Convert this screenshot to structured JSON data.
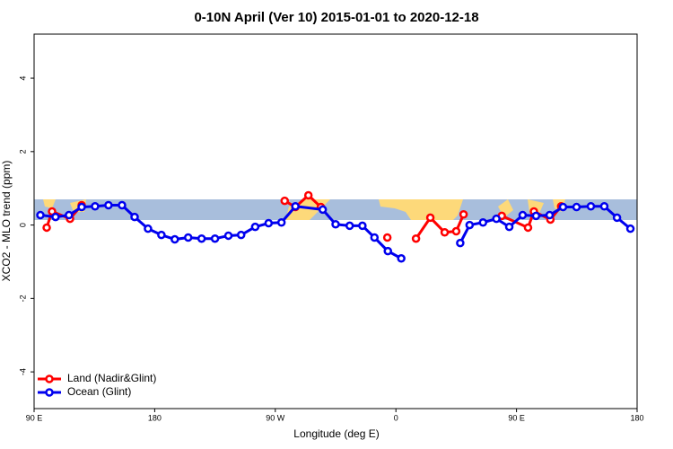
{
  "chart_data": {
    "type": "line",
    "title": "0-10N April (Ver 10)   2015-01-01 to 2020-12-18",
    "xlabel": "Longitude (deg E)",
    "ylabel": "XCO2 - MLO trend (ppm)",
    "xlim": [
      90,
      540
    ],
    "xticks": [
      {
        "value": 90,
        "label": "90 E"
      },
      {
        "value": 180,
        "label": "180"
      },
      {
        "value": 270,
        "label": "90 W"
      },
      {
        "value": 360,
        "label": "0"
      },
      {
        "value": 450,
        "label": "90 E"
      },
      {
        "value": 540,
        "label": "180"
      }
    ],
    "ylim": [
      -5.0,
      5.2
    ],
    "yticks": [
      -4,
      -2,
      0,
      2,
      4
    ],
    "legend": "bottom-left",
    "series": [
      {
        "name": "Land (Nadir&Glint)",
        "color": "#ff0000",
        "x": [
          99.4,
          103.4,
          116.8,
          125.5,
          null,
          277,
          285,
          294.7,
          304,
          null,
          353.6,
          null,
          375,
          385.7,
          396.4,
          405,
          410.5,
          null,
          439,
          458.6,
          463,
          475.3,
          483.3
        ],
        "values": [
          -0.07,
          0.37,
          0.17,
          0.54,
          null,
          0.66,
          0.49,
          0.81,
          0.49,
          null,
          -0.34,
          null,
          -0.37,
          0.2,
          -0.2,
          -0.17,
          0.29,
          null,
          0.25,
          -0.07,
          0.37,
          0.15,
          0.51
        ]
      },
      {
        "name": "Ocean (Glint)",
        "color": "#0000ee",
        "x": [
          94.7,
          106,
          116,
          125.5,
          135.5,
          145.5,
          155.6,
          165,
          175,
          185,
          195,
          205,
          215,
          225,
          235,
          244.5,
          255,
          265,
          274.6,
          285,
          305.4,
          315,
          325.5,
          335,
          344,
          354,
          364,
          null,
          408,
          415,
          425,
          435,
          444.6,
          454.6,
          464.6,
          474.7,
          484.7,
          494.8,
          505.5,
          515.5,
          525,
          535
        ],
        "values": [
          0.27,
          0.22,
          0.27,
          0.49,
          0.51,
          0.54,
          0.54,
          0.22,
          -0.1,
          -0.27,
          -0.39,
          -0.34,
          -0.37,
          -0.37,
          -0.29,
          -0.27,
          -0.05,
          0.05,
          0.07,
          0.51,
          0.42,
          0.02,
          -0.02,
          -0.02,
          -0.34,
          -0.71,
          -0.91,
          null,
          -0.49,
          0,
          0.07,
          0.17,
          -0.05,
          0.27,
          0.25,
          0.27,
          0.49,
          0.49,
          0.51,
          0.51,
          0.2,
          -0.1
        ]
      }
    ]
  }
}
